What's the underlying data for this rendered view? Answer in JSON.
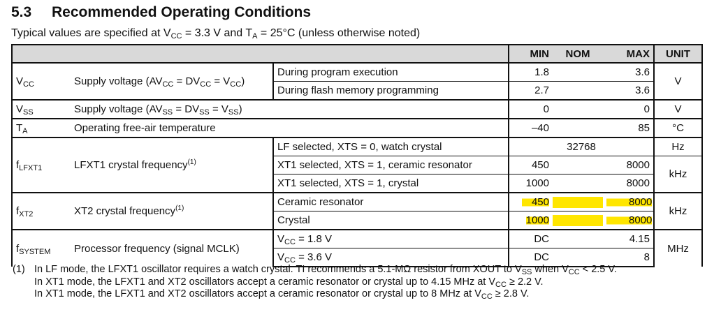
{
  "section": {
    "number": "5.3",
    "title": "Recommended Operating Conditions"
  },
  "subtitle": {
    "a": "Typical values are specified at V",
    "a_sub": "CC",
    "b": " = 3.3 V and T",
    "b_sub": "A",
    "c": " = 25°C (unless otherwise noted)"
  },
  "headers": {
    "min": "MIN",
    "nom": "NOM",
    "max": "MAX",
    "unit": "UNIT"
  },
  "rows": {
    "vcc": {
      "sym": "V",
      "sym_sub": "CC",
      "desc": [
        "Supply voltage (AV",
        "CC",
        " = DV",
        "CC",
        " = V",
        "CC",
        ")"
      ],
      "unit": "V",
      "conds": [
        {
          "cond": "During program execution",
          "min": "1.8",
          "max": "3.6"
        },
        {
          "cond": "During flash memory programming",
          "min": "2.7",
          "max": "3.6"
        }
      ]
    },
    "vss": {
      "sym": "V",
      "sym_sub": "SS",
      "desc": [
        "Supply voltage (AV",
        "SS",
        " = DV",
        "SS",
        " = V",
        "SS",
        ")"
      ],
      "min": "0",
      "max": "0",
      "unit": "V"
    },
    "ta": {
      "sym": "T",
      "sym_sub": "A",
      "desc": "Operating free-air temperature",
      "min": "–40",
      "max": "85",
      "unit": "°C"
    },
    "flfxt1": {
      "sym": "f",
      "sym_sub": "LFXT1",
      "desc": "LFXT1 crystal frequency",
      "note": "(1)",
      "conds": [
        {
          "cond": "LF selected, XTS = 0, watch crystal",
          "nom": "32768",
          "unit": "Hz"
        },
        {
          "cond": "XT1 selected, XTS = 1, ceramic resonator",
          "min": "450",
          "max": "8000"
        },
        {
          "cond": "XT1 selected, XTS = 1, crystal",
          "min": "1000",
          "max": "8000"
        }
      ],
      "unit": "kHz"
    },
    "fxt2": {
      "sym": "f",
      "sym_sub": "XT2",
      "desc": "XT2 crystal frequency",
      "note": "(1)",
      "unit": "kHz",
      "conds": [
        {
          "cond": "Ceramic resonator",
          "min": "450",
          "max": "8000"
        },
        {
          "cond": "Crystal",
          "min": "1000",
          "max": "8000"
        }
      ]
    },
    "fsystem": {
      "sym": "f",
      "sym_sub": "SYSTEM",
      "desc": "Processor frequency (signal MCLK)",
      "unit": "MHz",
      "conds": [
        {
          "cond_a": "V",
          "cond_sub": "CC",
          "cond_b": " = 1.8 V",
          "min": "DC",
          "max": "4.15"
        },
        {
          "cond_a": "V",
          "cond_sub": "CC",
          "cond_b": " = 3.6 V",
          "min": "DC",
          "max": "8"
        }
      ]
    }
  },
  "highlight_color": "#ffe600",
  "footnote": {
    "marker": "(1)",
    "l1": [
      "In LF mode, the LFXT1 oscillator requires a watch crystal. TI recommends a 5.1-MΩ resistor from XOUT to V",
      "SS",
      " when V",
      "CC",
      " < 2.5 V."
    ],
    "l2": [
      "In XT1 mode, the LFXT1 and XT2 oscillators accept a ceramic resonator or crystal up to 4.15 MHz at V",
      "CC",
      " ≥ 2.2 V."
    ],
    "l3": [
      "In XT1 mode, the LFXT1 and XT2 oscillators accept a ceramic resonator or crystal up to 8 MHz at V",
      "CC",
      " ≥ 2.8 V."
    ]
  }
}
